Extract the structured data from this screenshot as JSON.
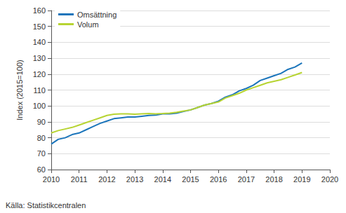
{
  "chart_data": {
    "type": "line",
    "ylabel": "Index (2015=100)",
    "source": "Källa: Statistikcentralen",
    "x": [
      2010.0,
      2010.25,
      2010.5,
      2010.75,
      2011.0,
      2011.25,
      2011.5,
      2011.75,
      2012.0,
      2012.25,
      2012.5,
      2012.75,
      2013.0,
      2013.25,
      2013.5,
      2013.75,
      2014.0,
      2014.25,
      2014.5,
      2014.75,
      2015.0,
      2015.25,
      2015.5,
      2015.75,
      2016.0,
      2016.25,
      2016.5,
      2016.75,
      2017.0,
      2017.25,
      2017.5,
      2017.75,
      2018.0,
      2018.25,
      2018.5,
      2018.75,
      2019.0
    ],
    "series": [
      {
        "name": "Omsättning",
        "color": "#1b75bb",
        "values": [
          76,
          79,
          80,
          82,
          83,
          85,
          87,
          89,
          90.5,
          92,
          92.5,
          93,
          93,
          93.5,
          94,
          94.2,
          95,
          95,
          95.5,
          96.5,
          97.5,
          99,
          100.5,
          101.5,
          103,
          105.5,
          107,
          109.5,
          111,
          113,
          116,
          117.5,
          119,
          120.5,
          123,
          124.5,
          127
        ]
      },
      {
        "name": "Volum",
        "color": "#b7d432",
        "values": [
          83,
          84.5,
          85.5,
          86.5,
          88,
          89.5,
          91,
          92.5,
          94,
          94.8,
          95,
          95,
          94.8,
          95,
          95.2,
          95,
          95.2,
          95.5,
          96,
          96.8,
          97.5,
          99,
          100.5,
          101.5,
          102.5,
          105,
          106.5,
          108,
          110,
          111.5,
          113,
          114.5,
          115.5,
          116.5,
          118,
          119.5,
          121
        ]
      }
    ],
    "xlim": [
      2010,
      2020
    ],
    "xticks": [
      2010,
      2011,
      2012,
      2013,
      2014,
      2015,
      2016,
      2017,
      2018,
      2019,
      2020
    ],
    "ylim": [
      60,
      160
    ],
    "yticks": [
      60,
      70,
      80,
      90,
      100,
      110,
      120,
      130,
      140,
      150,
      160
    ],
    "grid": true,
    "legend": "upper left"
  }
}
